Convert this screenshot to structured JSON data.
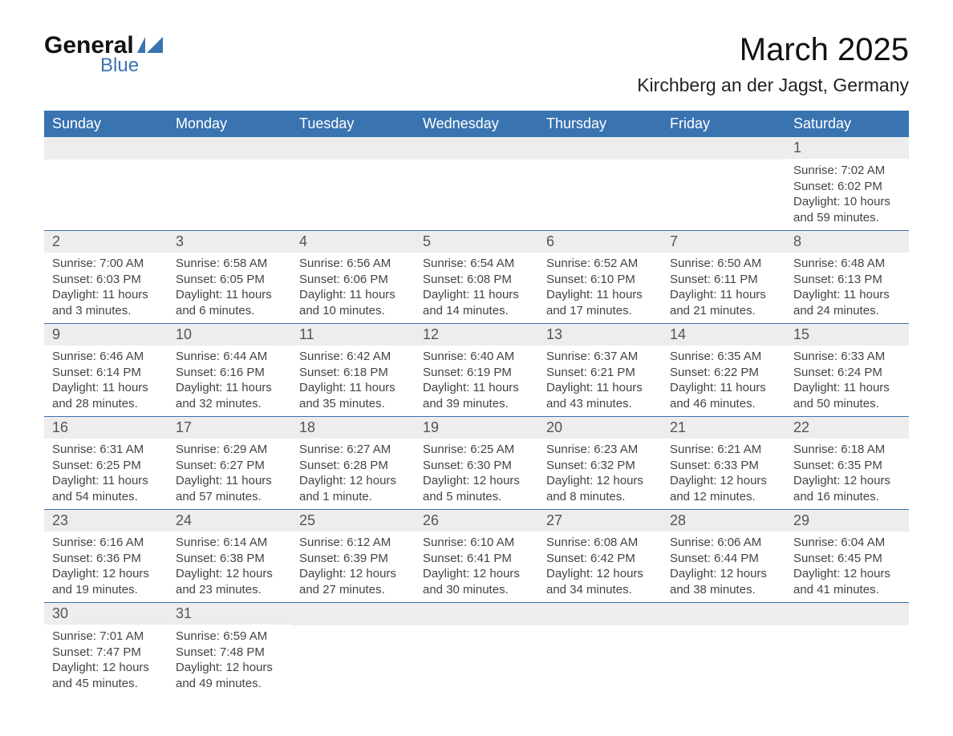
{
  "brand": {
    "main": "General",
    "sub": "Blue",
    "accent": "#3973b0"
  },
  "title": "March 2025",
  "subtitle": "Kirchberg an der Jagst, Germany",
  "colors": {
    "header_bg": "#3973b0",
    "header_text": "#ffffff",
    "daynum_bg": "#ededed",
    "body_text": "#444444",
    "row_border": "#3973b0"
  },
  "dayHeaders": [
    "Sunday",
    "Monday",
    "Tuesday",
    "Wednesday",
    "Thursday",
    "Friday",
    "Saturday"
  ],
  "weeks": [
    [
      null,
      null,
      null,
      null,
      null,
      null,
      {
        "d": "1",
        "sr": "Sunrise: 7:02 AM",
        "ss": "Sunset: 6:02 PM",
        "dl1": "Daylight: 10 hours",
        "dl2": "and 59 minutes."
      }
    ],
    [
      {
        "d": "2",
        "sr": "Sunrise: 7:00 AM",
        "ss": "Sunset: 6:03 PM",
        "dl1": "Daylight: 11 hours",
        "dl2": "and 3 minutes."
      },
      {
        "d": "3",
        "sr": "Sunrise: 6:58 AM",
        "ss": "Sunset: 6:05 PM",
        "dl1": "Daylight: 11 hours",
        "dl2": "and 6 minutes."
      },
      {
        "d": "4",
        "sr": "Sunrise: 6:56 AM",
        "ss": "Sunset: 6:06 PM",
        "dl1": "Daylight: 11 hours",
        "dl2": "and 10 minutes."
      },
      {
        "d": "5",
        "sr": "Sunrise: 6:54 AM",
        "ss": "Sunset: 6:08 PM",
        "dl1": "Daylight: 11 hours",
        "dl2": "and 14 minutes."
      },
      {
        "d": "6",
        "sr": "Sunrise: 6:52 AM",
        "ss": "Sunset: 6:10 PM",
        "dl1": "Daylight: 11 hours",
        "dl2": "and 17 minutes."
      },
      {
        "d": "7",
        "sr": "Sunrise: 6:50 AM",
        "ss": "Sunset: 6:11 PM",
        "dl1": "Daylight: 11 hours",
        "dl2": "and 21 minutes."
      },
      {
        "d": "8",
        "sr": "Sunrise: 6:48 AM",
        "ss": "Sunset: 6:13 PM",
        "dl1": "Daylight: 11 hours",
        "dl2": "and 24 minutes."
      }
    ],
    [
      {
        "d": "9",
        "sr": "Sunrise: 6:46 AM",
        "ss": "Sunset: 6:14 PM",
        "dl1": "Daylight: 11 hours",
        "dl2": "and 28 minutes."
      },
      {
        "d": "10",
        "sr": "Sunrise: 6:44 AM",
        "ss": "Sunset: 6:16 PM",
        "dl1": "Daylight: 11 hours",
        "dl2": "and 32 minutes."
      },
      {
        "d": "11",
        "sr": "Sunrise: 6:42 AM",
        "ss": "Sunset: 6:18 PM",
        "dl1": "Daylight: 11 hours",
        "dl2": "and 35 minutes."
      },
      {
        "d": "12",
        "sr": "Sunrise: 6:40 AM",
        "ss": "Sunset: 6:19 PM",
        "dl1": "Daylight: 11 hours",
        "dl2": "and 39 minutes."
      },
      {
        "d": "13",
        "sr": "Sunrise: 6:37 AM",
        "ss": "Sunset: 6:21 PM",
        "dl1": "Daylight: 11 hours",
        "dl2": "and 43 minutes."
      },
      {
        "d": "14",
        "sr": "Sunrise: 6:35 AM",
        "ss": "Sunset: 6:22 PM",
        "dl1": "Daylight: 11 hours",
        "dl2": "and 46 minutes."
      },
      {
        "d": "15",
        "sr": "Sunrise: 6:33 AM",
        "ss": "Sunset: 6:24 PM",
        "dl1": "Daylight: 11 hours",
        "dl2": "and 50 minutes."
      }
    ],
    [
      {
        "d": "16",
        "sr": "Sunrise: 6:31 AM",
        "ss": "Sunset: 6:25 PM",
        "dl1": "Daylight: 11 hours",
        "dl2": "and 54 minutes."
      },
      {
        "d": "17",
        "sr": "Sunrise: 6:29 AM",
        "ss": "Sunset: 6:27 PM",
        "dl1": "Daylight: 11 hours",
        "dl2": "and 57 minutes."
      },
      {
        "d": "18",
        "sr": "Sunrise: 6:27 AM",
        "ss": "Sunset: 6:28 PM",
        "dl1": "Daylight: 12 hours",
        "dl2": "and 1 minute."
      },
      {
        "d": "19",
        "sr": "Sunrise: 6:25 AM",
        "ss": "Sunset: 6:30 PM",
        "dl1": "Daylight: 12 hours",
        "dl2": "and 5 minutes."
      },
      {
        "d": "20",
        "sr": "Sunrise: 6:23 AM",
        "ss": "Sunset: 6:32 PM",
        "dl1": "Daylight: 12 hours",
        "dl2": "and 8 minutes."
      },
      {
        "d": "21",
        "sr": "Sunrise: 6:21 AM",
        "ss": "Sunset: 6:33 PM",
        "dl1": "Daylight: 12 hours",
        "dl2": "and 12 minutes."
      },
      {
        "d": "22",
        "sr": "Sunrise: 6:18 AM",
        "ss": "Sunset: 6:35 PM",
        "dl1": "Daylight: 12 hours",
        "dl2": "and 16 minutes."
      }
    ],
    [
      {
        "d": "23",
        "sr": "Sunrise: 6:16 AM",
        "ss": "Sunset: 6:36 PM",
        "dl1": "Daylight: 12 hours",
        "dl2": "and 19 minutes."
      },
      {
        "d": "24",
        "sr": "Sunrise: 6:14 AM",
        "ss": "Sunset: 6:38 PM",
        "dl1": "Daylight: 12 hours",
        "dl2": "and 23 minutes."
      },
      {
        "d": "25",
        "sr": "Sunrise: 6:12 AM",
        "ss": "Sunset: 6:39 PM",
        "dl1": "Daylight: 12 hours",
        "dl2": "and 27 minutes."
      },
      {
        "d": "26",
        "sr": "Sunrise: 6:10 AM",
        "ss": "Sunset: 6:41 PM",
        "dl1": "Daylight: 12 hours",
        "dl2": "and 30 minutes."
      },
      {
        "d": "27",
        "sr": "Sunrise: 6:08 AM",
        "ss": "Sunset: 6:42 PM",
        "dl1": "Daylight: 12 hours",
        "dl2": "and 34 minutes."
      },
      {
        "d": "28",
        "sr": "Sunrise: 6:06 AM",
        "ss": "Sunset: 6:44 PM",
        "dl1": "Daylight: 12 hours",
        "dl2": "and 38 minutes."
      },
      {
        "d": "29",
        "sr": "Sunrise: 6:04 AM",
        "ss": "Sunset: 6:45 PM",
        "dl1": "Daylight: 12 hours",
        "dl2": "and 41 minutes."
      }
    ],
    [
      {
        "d": "30",
        "sr": "Sunrise: 7:01 AM",
        "ss": "Sunset: 7:47 PM",
        "dl1": "Daylight: 12 hours",
        "dl2": "and 45 minutes."
      },
      {
        "d": "31",
        "sr": "Sunrise: 6:59 AM",
        "ss": "Sunset: 7:48 PM",
        "dl1": "Daylight: 12 hours",
        "dl2": "and 49 minutes."
      },
      null,
      null,
      null,
      null,
      null
    ]
  ]
}
